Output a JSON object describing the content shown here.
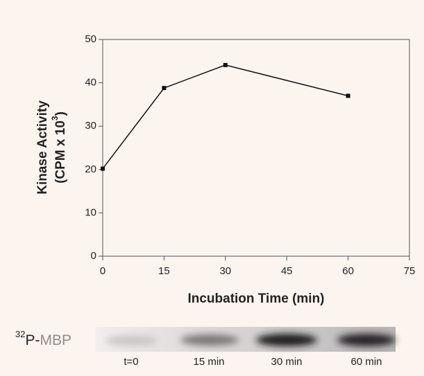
{
  "chart_data": {
    "type": "line",
    "x": [
      0,
      15,
      30,
      60
    ],
    "series": [
      {
        "color": "#111111",
        "values": [
          20.2,
          38.8,
          44.1,
          37.0
        ]
      }
    ],
    "xlim": [
      0,
      75
    ],
    "xticks": [
      0,
      15,
      30,
      45,
      60,
      75
    ],
    "ylim": [
      0,
      50
    ],
    "yticks": [
      0,
      10,
      20,
      30,
      40,
      50
    ],
    "xlabel": "Incubation Time (min)",
    "ylabel": "Kinase Activity",
    "ylabel_unit": {
      "text": "(CPM x 10",
      "sup": "3",
      "end": ")"
    },
    "blot": {
      "label_sup": "32",
      "label": "P-",
      "protein": "MBP",
      "lanes": [
        "t=0",
        "15 min",
        "30 min",
        "60 min"
      ]
    }
  }
}
